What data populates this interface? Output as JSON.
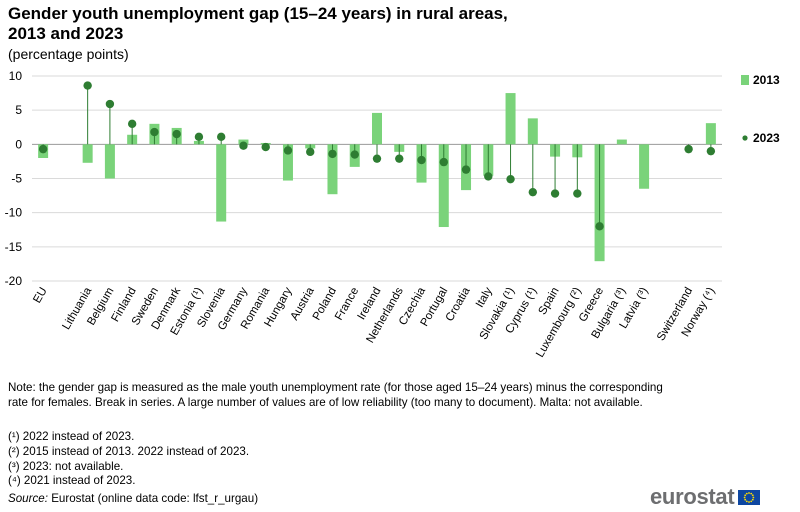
{
  "title": "Gender youth unemployment gap (15–24 years) in rural areas, 2013 and 2023",
  "subtitle": "(percentage points)",
  "chart_data": {
    "type": "bar",
    "categories": [
      "EU",
      "",
      "Lithuania",
      "Belgium",
      "Finland",
      "Sweden",
      "Denmark",
      "Estonia (¹)",
      "Slovenia",
      "Germany",
      "Romania",
      "Hungary",
      "Austria",
      "Poland",
      "France",
      "Ireland",
      "Netherlands",
      "Czechia",
      "Portugal",
      "Croatia",
      "Italy",
      "Slovakia (¹)",
      "Cyprus (¹)",
      "Spain",
      "Luxembourg (²)",
      "Greece",
      "Bulgaria (³)",
      "Latvia (³)",
      "",
      "Switzerland",
      "Norway (⁴)"
    ],
    "series": [
      {
        "name": "2013",
        "type": "bar",
        "color": "#7ad37a",
        "values": [
          -2.0,
          null,
          -2.7,
          -5.0,
          1.4,
          3.0,
          2.4,
          0.5,
          -11.3,
          0.7,
          0.2,
          -5.3,
          -0.6,
          -7.3,
          -3.3,
          4.6,
          -1.1,
          -5.6,
          -12.1,
          -6.7,
          -4.6,
          7.5,
          3.8,
          -1.8,
          -1.9,
          -17.1,
          0.7,
          -6.5,
          null,
          null,
          3.1
        ]
      },
      {
        "name": "2023",
        "type": "dot",
        "color": "#2e7d32",
        "values": [
          -0.7,
          null,
          8.6,
          5.9,
          3.0,
          1.8,
          1.5,
          1.1,
          1.1,
          -0.2,
          -0.4,
          -0.9,
          -1.1,
          -1.4,
          -1.5,
          -2.1,
          -2.1,
          -2.3,
          -2.6,
          -3.7,
          -4.7,
          -5.1,
          -7.0,
          -7.2,
          -7.2,
          -12.0,
          null,
          null,
          null,
          -0.7,
          -1.0
        ]
      }
    ],
    "ylim": [
      -20,
      10
    ],
    "yticks": [
      -20,
      -15,
      -10,
      -5,
      0,
      5,
      10
    ],
    "grid": true,
    "legend": "right",
    "xlabel": "",
    "ylabel": ""
  },
  "notes": {
    "main": "Note: the gender gap is measured as the male youth unemployment  rate (for those aged 15–24 years) minus the corresponding rate for females. Break in series. A large number of values are of low reliability (too many to document). Malta: not available.",
    "footnotes": [
      "(¹) 2022 instead of 2023.",
      "(²) 2015 instead of 2013. 2022 instead of 2023.",
      "(³) 2023: not available.",
      "(⁴) 2021 instead of 2023."
    ],
    "source_label": "Source:",
    "source_text": " Eurostat (online data code: lfst_r_urgau)"
  },
  "logo": {
    "text": "eurostat",
    "icon": "eu-flag-icon",
    "flag_color": "#0e47a1",
    "star_color": "#ffdd00"
  }
}
